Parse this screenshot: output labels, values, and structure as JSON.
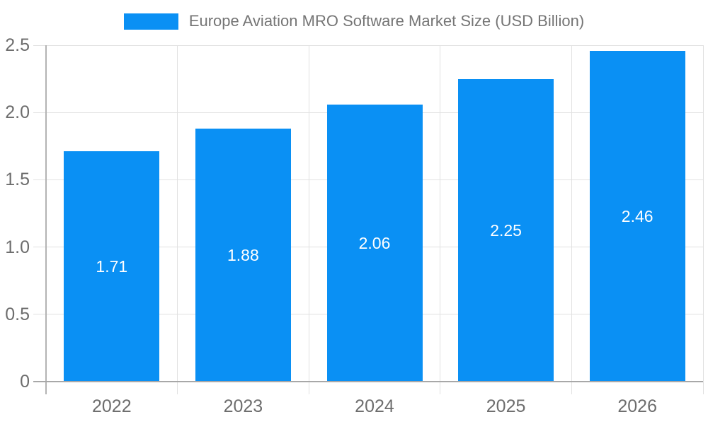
{
  "chart_data": {
    "type": "bar",
    "title": "Europe Aviation MRO Software Market Size (USD Billion)",
    "categories": [
      "2022",
      "2023",
      "2024",
      "2025",
      "2026"
    ],
    "values": [
      1.71,
      1.88,
      2.06,
      2.25,
      2.46
    ],
    "value_labels": [
      "1.71",
      "1.88",
      "2.06",
      "2.25",
      "2.46"
    ],
    "series": [
      {
        "name": "Europe Aviation MRO Software Market Size (USD Billion)",
        "values": [
          1.71,
          1.88,
          2.06,
          2.25,
          2.46
        ]
      }
    ],
    "xlabel": "",
    "ylabel": "",
    "ylim": [
      0,
      2.5
    ],
    "yticks": [
      0,
      0.5,
      1.0,
      1.5,
      2.0,
      2.5
    ],
    "ytick_labels": [
      "0",
      "0.5",
      "1.0",
      "1.5",
      "2.0",
      "2.5"
    ],
    "grid": "on",
    "legend_position": "top"
  },
  "colors": {
    "bar": "#0a90f4",
    "gridline": "#e1e1e1",
    "axis_line": "#b3b3b3",
    "baseline": "#a8a8a8",
    "axis_text": "#6d6d6d",
    "legend_text": "#757575",
    "value_label_text": "#ffffff",
    "background": "#ffffff"
  }
}
